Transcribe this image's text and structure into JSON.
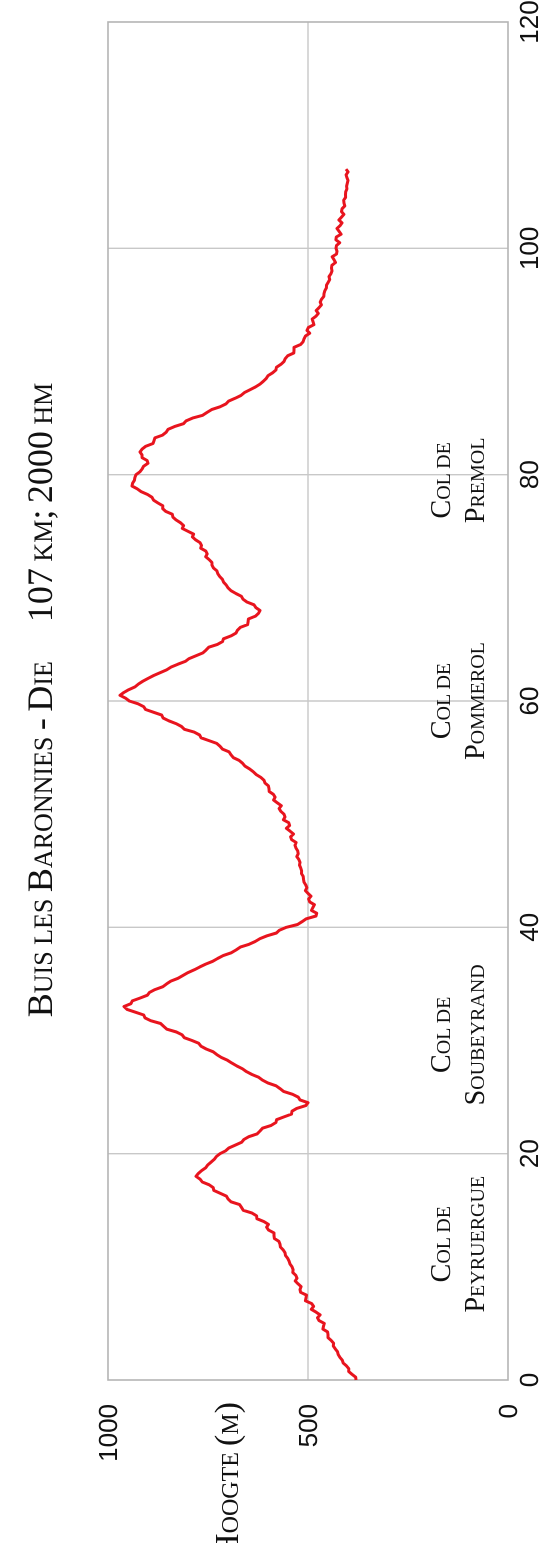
{
  "chart_data": {
    "type": "line",
    "title": {
      "part1": "Buis les Baronnies - Die",
      "part2": "107 km; 2000 hm"
    },
    "ylabel": "Hoogte (m)",
    "xlabel": "",
    "xlim": [
      0,
      120
    ],
    "ylim": [
      0,
      1000
    ],
    "x_ticks": [
      0,
      20,
      40,
      60,
      80,
      100,
      120
    ],
    "y_ticks": [
      0,
      500,
      1000
    ],
    "grid": true,
    "line_color": "#e8141e",
    "series": [
      {
        "x": [
          0,
          2,
          4,
          6,
          8,
          10,
          12,
          14,
          16,
          18,
          20,
          22,
          24.5,
          27,
          30,
          33,
          36,
          39,
          41,
          44,
          47,
          50,
          53,
          56,
          58,
          60.5,
          62,
          64,
          66,
          68,
          70,
          72,
          74,
          76,
          78,
          79,
          80,
          81,
          82,
          84,
          86,
          88,
          90,
          92,
          94,
          96,
          98,
          100,
          102,
          104,
          106,
          107
        ],
        "values": [
          380,
          420,
          450,
          480,
          520,
          540,
          570,
          610,
          700,
          780,
          720,
          620,
          500,
          640,
          790,
          960,
          800,
          620,
          480,
          510,
          530,
          560,
          610,
          720,
          830,
          970,
          900,
          780,
          680,
          620,
          700,
          740,
          770,
          830,
          890,
          940,
          930,
          900,
          920,
          850,
          720,
          620,
          560,
          510,
          480,
          460,
          440,
          430,
          420,
          410,
          400,
          405
        ]
      }
    ],
    "annotations": [
      {
        "x": 12,
        "lines": [
          "Col de",
          "Peyruergue"
        ]
      },
      {
        "x": 30.5,
        "lines": [
          "Col de",
          "Soubeyrand"
        ]
      },
      {
        "x": 60,
        "lines": [
          "Col de",
          "Pommerol"
        ]
      },
      {
        "x": 79.5,
        "lines": [
          "Col de",
          "Premol"
        ]
      }
    ]
  }
}
